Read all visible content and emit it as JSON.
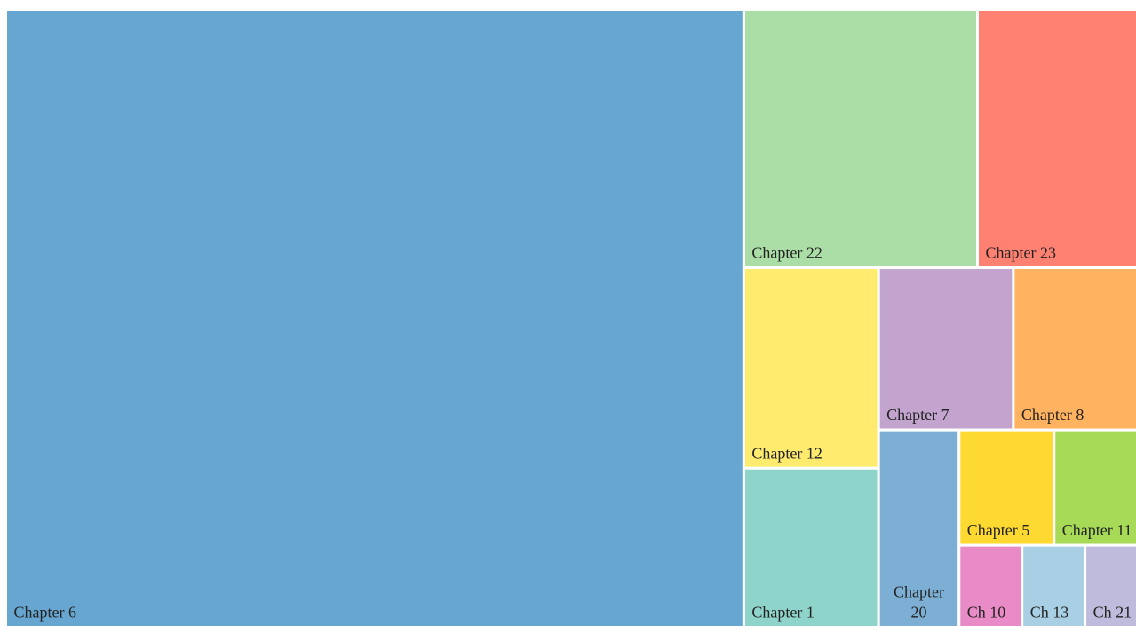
{
  "chart_data": {
    "type": "treemap",
    "categories": [
      "Chapter 6",
      "Chapter 22",
      "Chapter 23",
      "Chapter 12",
      "Chapter 1",
      "Chapter 7",
      "Chapter 8",
      "Chapter 20",
      "Chapter 5",
      "Chapter 11",
      "Ch 10",
      "Ch 13",
      "Ch 21"
    ],
    "values": [
      574,
      76,
      52,
      34,
      27,
      27.5,
      25.3,
      20,
      13.8,
      12.1,
      6.5,
      6.5,
      5.4
    ],
    "colors": [
      "#67a6d1",
      "#aadea6",
      "#fe8172",
      "#ffeb6e",
      "#8fd4cb",
      "#c2a4cf",
      "#ffb260",
      "#7cafd3",
      "#fed931",
      "#a7da56",
      "#e98bc6",
      "#a9cfe5",
      "#bfbbdc"
    ]
  }
}
